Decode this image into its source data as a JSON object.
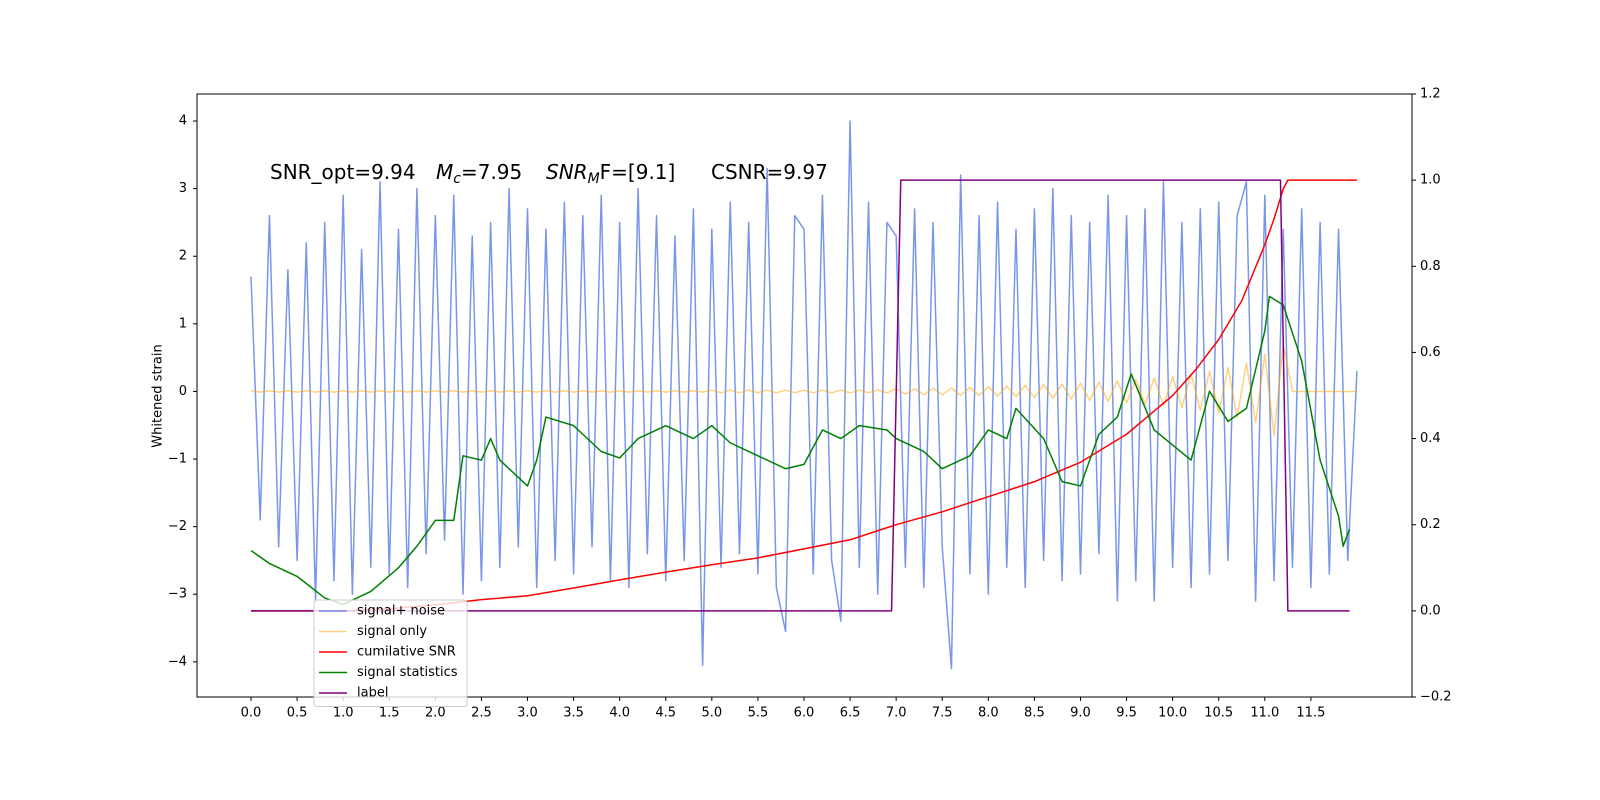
{
  "chart_data": {
    "type": "line",
    "ylabel": "Whitened strain",
    "annotations": [
      {
        "text": "SNR_opt=9.94"
      },
      {
        "main": "M",
        "sub": "c",
        "tail": "=7.95"
      },
      {
        "main": "SNR",
        "sub": "M",
        "tail": "F=[9.1]"
      },
      {
        "text": "CSNR=9.97"
      }
    ],
    "legend": "lower left",
    "xlim": [
      -0.586,
      12.597
    ],
    "ylim": [
      -4.52,
      4.4
    ],
    "y2lim": [
      -0.2,
      1.2
    ],
    "xticks": [
      {
        "value": 0,
        "label": "0.0"
      },
      0.5,
      {
        "value": 1,
        "label": "1.0"
      },
      1.5,
      {
        "value": 2,
        "label": "2.0"
      },
      2.5,
      {
        "value": 3,
        "label": "3.0"
      },
      3.5,
      {
        "value": 4,
        "label": "4.0"
      },
      4.5,
      {
        "value": 5,
        "label": "5.0"
      },
      5.5,
      {
        "value": 6,
        "label": "6.0"
      },
      6.5,
      {
        "value": 7,
        "label": "7.0"
      },
      7.5,
      {
        "value": 8,
        "label": "8.0"
      },
      8.5,
      {
        "value": 9,
        "label": "9.0"
      },
      9.5,
      {
        "value": 10,
        "label": "10.0"
      },
      10.5,
      {
        "value": 11,
        "label": "11.0"
      },
      11.5
    ],
    "yticks": [
      {
        "value": -4,
        "label": "−4"
      },
      {
        "value": -3,
        "label": "−3"
      },
      {
        "value": -2,
        "label": "−2"
      },
      {
        "value": -1,
        "label": "−1"
      },
      0,
      1,
      2,
      3,
      4
    ],
    "y2ticks": [
      {
        "value": -0.2,
        "label": "−0.2"
      },
      {
        "value": 0,
        "label": "0.0"
      },
      0.2,
      0.4,
      0.6,
      0.8,
      {
        "value": 1,
        "label": "1.0"
      },
      1.2
    ],
    "x": [
      0,
      0.1,
      0.2,
      0.3,
      0.4,
      0.5,
      0.6,
      0.7,
      0.8,
      0.9,
      1,
      1.1,
      1.2,
      1.3,
      1.4,
      1.5,
      1.6,
      1.7,
      1.8,
      1.9,
      2,
      2.1,
      2.2,
      2.3,
      2.4,
      2.5,
      2.6,
      2.7,
      2.8,
      2.9,
      3,
      3.1,
      3.2,
      3.3,
      3.4,
      3.5,
      3.6,
      3.7,
      3.8,
      3.9,
      4,
      4.1,
      4.2,
      4.3,
      4.4,
      4.5,
      4.6,
      4.7,
      4.8,
      4.9,
      5,
      5.1,
      5.2,
      5.3,
      5.4,
      5.5,
      5.6,
      5.7,
      5.8,
      5.9,
      6,
      6.1,
      6.2,
      6.3,
      6.4,
      6.5,
      6.6,
      6.7,
      6.8,
      6.9,
      7,
      7.1,
      7.2,
      7.3,
      7.4,
      7.5,
      7.6,
      7.7,
      7.8,
      7.9,
      8,
      8.1,
      8.2,
      8.3,
      8.4,
      8.5,
      8.6,
      8.7,
      8.8,
      8.9,
      9,
      9.1,
      9.2,
      9.3,
      9.4,
      9.5,
      9.6,
      9.7,
      9.8,
      9.9,
      10,
      10.1,
      10.2,
      10.3,
      10.4,
      10.5,
      10.6,
      10.7,
      10.8,
      10.9,
      11,
      11.1,
      11.2,
      11.3,
      11.4,
      11.5,
      11.6,
      11.7,
      11.8,
      11.9,
      12
    ],
    "series": [
      {
        "name": "signal+ noise",
        "color": "#4169e1",
        "alpha": 0.7,
        "values": [
          1.7,
          -1.9,
          2.6,
          -2.3,
          1.8,
          -2.5,
          2.2,
          -3.1,
          2.5,
          -2.8,
          2.9,
          -3.0,
          2.1,
          -2.6,
          3.1,
          -2.7,
          2.4,
          -2.9,
          3.0,
          -2.4,
          2.6,
          -2.2,
          2.9,
          -3.0,
          2.3,
          -2.8,
          2.5,
          -2.6,
          3.0,
          -2.3,
          2.7,
          -2.9,
          2.4,
          -2.5,
          2.8,
          -2.7,
          2.6,
          -2.3,
          2.9,
          -2.8,
          2.5,
          -2.9,
          3.0,
          -2.4,
          2.6,
          -2.8,
          2.3,
          -2.5,
          2.7,
          -4.05,
          2.4,
          -2.6,
          2.8,
          -2.4,
          2.5,
          -2.7,
          3.3,
          -2.9,
          -3.55,
          2.6,
          2.4,
          -2.7,
          2.9,
          -2.5,
          -3.4,
          4.0,
          -2.6,
          2.8,
          -3.0,
          2.5,
          2.3,
          -2.6,
          2.7,
          -2.9,
          2.5,
          -2.3,
          -4.1,
          3.2,
          -2.7,
          2.6,
          -3.0,
          2.8,
          -2.6,
          2.4,
          -2.9,
          2.7,
          -2.5,
          3.0,
          -2.8,
          2.6,
          -2.7,
          2.5,
          -2.4,
          2.9,
          -3.1,
          2.6,
          -2.8,
          2.7,
          -3.1,
          3.1,
          -2.6,
          2.5,
          -2.9,
          2.7,
          -2.7,
          2.8,
          -2.5,
          2.6,
          3.1,
          -3.1,
          2.9,
          -2.8,
          2.4,
          -2.6,
          2.7,
          -2.9,
          2.5,
          -2.7,
          2.4,
          -2.5,
          0.3
        ]
      },
      {
        "name": "signal only",
        "color": "#ffa500",
        "alpha": 0.5,
        "values": [
          0.01,
          -0.01,
          0.01,
          -0.01,
          0.01,
          -0.01,
          0.01,
          -0.01,
          0.01,
          -0.01,
          0.01,
          -0.01,
          0.01,
          -0.01,
          0.01,
          -0.01,
          0.01,
          -0.01,
          0.01,
          -0.01,
          0.01,
          -0.01,
          0.01,
          -0.01,
          0.01,
          -0.01,
          0.01,
          -0.01,
          0.01,
          -0.01,
          0.01,
          -0.01,
          0.01,
          -0.01,
          0.01,
          -0.01,
          0.01,
          -0.01,
          0.01,
          -0.01,
          0.01,
          -0.01,
          0.01,
          -0.01,
          0.01,
          -0.01,
          0.01,
          -0.01,
          0.01,
          -0.01,
          0.02,
          -0.02,
          0.02,
          -0.02,
          0.02,
          -0.02,
          0.02,
          -0.02,
          0.02,
          -0.02,
          0.02,
          -0.02,
          0.02,
          -0.02,
          0.02,
          -0.02,
          0.02,
          -0.02,
          0.02,
          -0.02,
          0.04,
          -0.04,
          0.04,
          -0.05,
          0.05,
          -0.05,
          0.05,
          -0.06,
          0.06,
          -0.06,
          0.07,
          -0.07,
          0.08,
          -0.08,
          0.09,
          -0.09,
          0.1,
          -0.1,
          0.11,
          -0.11,
          0.12,
          -0.13,
          0.14,
          -0.15,
          0.16,
          -0.17,
          0.18,
          -0.19,
          0.2,
          -0.21,
          0.22,
          -0.24,
          0.26,
          -0.28,
          0.3,
          -0.32,
          0.35,
          -0.38,
          0.42,
          -0.46,
          0.55,
          -0.65,
          0.7,
          0,
          0,
          0,
          0,
          0,
          0,
          0,
          0
        ]
      },
      {
        "name": "cumilative SNR",
        "color": "#ff0000",
        "axis": "y2",
        "x": [
          0,
          1,
          1.5,
          2,
          2.5,
          3,
          3.5,
          4,
          4.5,
          5,
          5.5,
          6,
          6.5,
          7,
          7.5,
          8,
          8.5,
          9,
          9.5,
          10,
          10.25,
          10.5,
          10.75,
          11,
          11.1,
          11.2,
          11.25,
          12
        ],
        "values": [
          0,
          0,
          0.005,
          0.014,
          0.026,
          0.035,
          0.053,
          0.072,
          0.09,
          0.107,
          0.123,
          0.144,
          0.165,
          0.2,
          0.23,
          0.265,
          0.3,
          0.345,
          0.41,
          0.5,
          0.56,
          0.63,
          0.72,
          0.85,
          0.91,
          0.98,
          1.0,
          1.0
        ]
      },
      {
        "name": "signal statistics",
        "color": "#008000",
        "axis": "y2",
        "x": [
          0,
          0.2,
          0.5,
          0.8,
          1.0,
          1.3,
          1.6,
          1.8,
          2.0,
          2.2,
          2.3,
          2.5,
          2.6,
          2.7,
          2.9,
          3.0,
          3.1,
          3.2,
          3.5,
          3.6,
          3.8,
          4.0,
          4.2,
          4.5,
          4.8,
          5.0,
          5.2,
          5.5,
          5.8,
          6.0,
          6.2,
          6.4,
          6.6,
          6.9,
          7.0,
          7.3,
          7.5,
          7.8,
          8.0,
          8.2,
          8.3,
          8.6,
          8.8,
          9.0,
          9.2,
          9.4,
          9.55,
          9.8,
          10.0,
          10.2,
          10.4,
          10.6,
          10.8,
          11.0,
          11.05,
          11.2,
          11.4,
          11.6,
          11.8,
          11.85,
          11.92
        ],
        "values": [
          0.14,
          0.11,
          0.08,
          0.03,
          0.015,
          0.045,
          0.1,
          0.15,
          0.21,
          0.21,
          0.36,
          0.35,
          0.4,
          0.35,
          0.31,
          0.29,
          0.35,
          0.45,
          0.43,
          0.41,
          0.37,
          0.355,
          0.4,
          0.43,
          0.4,
          0.43,
          0.39,
          0.36,
          0.33,
          0.34,
          0.42,
          0.4,
          0.43,
          0.42,
          0.4,
          0.37,
          0.33,
          0.36,
          0.42,
          0.4,
          0.47,
          0.4,
          0.3,
          0.29,
          0.41,
          0.45,
          0.55,
          0.42,
          0.385,
          0.35,
          0.51,
          0.44,
          0.47,
          0.65,
          0.73,
          0.71,
          0.58,
          0.35,
          0.22,
          0.15,
          0.19
        ]
      },
      {
        "name": "label",
        "color": "#800080",
        "axis": "y2",
        "x": [
          0,
          6.95,
          7.05,
          11.17,
          11.25,
          11.92
        ],
        "values": [
          0,
          0,
          1,
          1,
          0,
          0
        ]
      }
    ]
  }
}
